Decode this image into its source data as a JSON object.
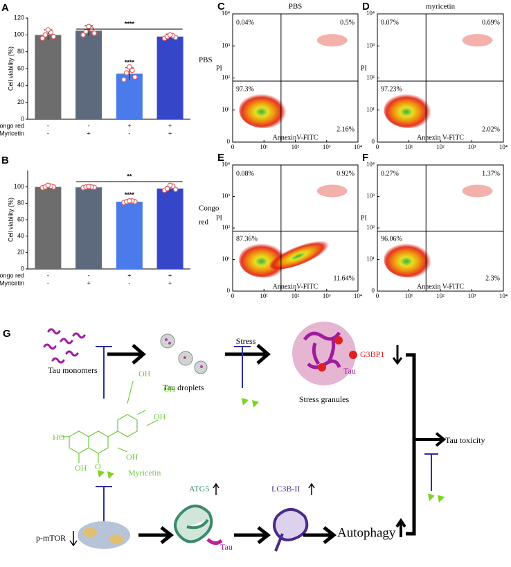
{
  "chart_data": [
    {
      "type": "bar",
      "panel": "A",
      "ylabel": "Cell viability (%)",
      "side_label": [
        "PBS"
      ],
      "categories": [
        null,
        null,
        null,
        null
      ],
      "values": [
        100,
        105,
        54,
        98
      ],
      "errors": [
        6,
        6,
        7,
        3
      ],
      "points": [
        [
          96,
          98,
          100,
          103,
          106
        ],
        [
          100,
          102,
          104,
          107,
          110
        ],
        [
          47,
          50,
          55,
          58,
          62
        ],
        [
          96,
          97,
          98,
          99,
          100
        ]
      ],
      "colors": [
        "#6d6d6d",
        "#5d6a7e",
        "#4b7bea",
        "#3646c8"
      ],
      "ylim": [
        0,
        120
      ],
      "yticks": [
        0,
        20,
        40,
        60,
        80,
        100,
        120
      ],
      "treatments": [
        {
          "name": "Congo red",
          "signs": [
            "-",
            "-",
            "+",
            "+"
          ]
        },
        {
          "name": "Myricetin",
          "signs": [
            "-",
            "+",
            "-",
            "+"
          ]
        }
      ],
      "bar_annotations": [
        null,
        null,
        "****",
        null
      ],
      "bracket_label": "****"
    },
    {
      "type": "bar",
      "panel": "B",
      "ylabel": "Cell viability (%)",
      "side_label": [
        "Congo",
        "red"
      ],
      "categories": [
        null,
        null,
        null,
        null
      ],
      "values": [
        100,
        99.5,
        82,
        98
      ],
      "errors": [
        2,
        1.5,
        2,
        3
      ],
      "points": [
        [
          99,
          100,
          100,
          101,
          102
        ],
        [
          99,
          99.5,
          100,
          100,
          100.5
        ],
        [
          81,
          82,
          82,
          83,
          83
        ],
        [
          96,
          97,
          98,
          101,
          102
        ]
      ],
      "colors": [
        "#6d6d6d",
        "#5d6a7e",
        "#4b7bea",
        "#3646c8"
      ],
      "ylim": [
        0,
        120
      ],
      "yticks": [
        0,
        20,
        40,
        60,
        80,
        100
      ],
      "treatments": [
        {
          "name": "Congo red",
          "signs": [
            "-",
            "-",
            "+",
            "+"
          ]
        },
        {
          "name": "Myricetin",
          "signs": [
            "-",
            "+",
            "-",
            "+"
          ]
        }
      ],
      "bar_annotations": [
        null,
        null,
        "****",
        null
      ],
      "bracket_label": "**"
    },
    {
      "type": "flow",
      "panel": "C",
      "title": "PBS",
      "xlabel": "AnnexinV-FITC",
      "ylabel": "PI",
      "values": [
        0.04,
        0.5,
        97.3,
        2.16
      ],
      "value_labels": [
        "0.04%",
        "0.5%",
        "97.3%",
        "2.16%"
      ],
      "gate_x": 35,
      "gate_y": 80,
      "xlim": [
        0,
        10000
      ],
      "ylim": [
        0,
        10000
      ],
      "xticks": [
        0,
        {
          "value": 10,
          "label": "10¹"
        },
        {
          "value": 100,
          "label": "10²"
        },
        {
          "value": 1000,
          "label": "10³"
        },
        {
          "value": 10000,
          "label": "10⁴"
        }
      ],
      "yticks": [
        0,
        {
          "value": 10,
          "label": "10¹"
        },
        {
          "value": 100,
          "label": "10²"
        },
        {
          "value": 1000,
          "label": "10³"
        },
        {
          "value": 10000,
          "label": "10⁴"
        }
      ]
    },
    {
      "type": "flow",
      "panel": "D",
      "title": "myricetin",
      "xlabel": "Annexin V-FITC",
      "ylabel": "PI",
      "values": [
        0.07,
        0.69,
        97.23,
        2.02
      ],
      "value_labels": [
        "0.07%",
        "0.69%",
        "97.23%",
        "2.02%"
      ],
      "gate_x": 35,
      "gate_y": 80,
      "xlim": [
        0,
        10000
      ],
      "ylim": [
        0,
        10000
      ],
      "xticks": [
        0,
        {
          "value": 10,
          "label": "10¹"
        },
        {
          "value": 100,
          "label": "10²"
        },
        {
          "value": 1000,
          "label": "10³"
        },
        {
          "value": 10000,
          "label": "10⁴"
        }
      ],
      "yticks": [
        0,
        {
          "value": 10,
          "label": "10¹"
        },
        {
          "value": 100,
          "label": "10²"
        },
        {
          "value": 1000,
          "label": "10³"
        },
        {
          "value": 10000,
          "label": "10⁴"
        }
      ]
    },
    {
      "type": "flow",
      "panel": "E",
      "xlabel": "AnnexinV-FITC",
      "ylabel": "PI",
      "values": [
        0.08,
        0.92,
        87.36,
        11.64
      ],
      "value_labels": [
        "0.08%",
        "0.92%",
        "87.36%",
        "11.64%"
      ],
      "gate_x": 35,
      "gate_y": 80,
      "xlim": [
        0,
        10000
      ],
      "ylim": [
        0,
        10000
      ],
      "xticks": [
        0,
        {
          "value": 10,
          "label": "10¹"
        },
        {
          "value": 100,
          "label": "10²"
        },
        {
          "value": 1000,
          "label": "10³"
        },
        {
          "value": 10000,
          "label": "10⁴"
        }
      ],
      "yticks": [
        0,
        {
          "value": 10,
          "label": "10¹"
        },
        {
          "value": 100,
          "label": "10²"
        },
        {
          "value": 1000,
          "label": "10³"
        },
        {
          "value": 10000,
          "label": "10⁴"
        }
      ]
    },
    {
      "type": "flow",
      "panel": "F",
      "xlabel": "Annexin V-FITC",
      "ylabel": "PI",
      "values": [
        0.27,
        1.37,
        96.06,
        2.3
      ],
      "value_labels": [
        "0.27%",
        "1.37%",
        "96.06%",
        "2.3%"
      ],
      "gate_x": 35,
      "gate_y": 80,
      "xlim": [
        0,
        10000
      ],
      "ylim": [
        0,
        10000
      ],
      "xticks": [
        0,
        {
          "value": 10,
          "label": "10¹"
        },
        {
          "value": 100,
          "label": "10²"
        },
        {
          "value": 1000,
          "label": "10³"
        },
        {
          "value": 10000,
          "label": "10⁴"
        }
      ],
      "yticks": [
        0,
        {
          "value": 10,
          "label": "10¹"
        },
        {
          "value": 100,
          "label": "10²"
        },
        {
          "value": 1000,
          "label": "10³"
        },
        {
          "value": 10000,
          "label": "10⁴"
        }
      ]
    }
  ],
  "diagram": {
    "panel": "G",
    "tau_monomers": "Tau monomers",
    "tau_droplets": "Tau droplets",
    "stress": "Stress",
    "stress_granules": "Stress granules",
    "g3bp1": "G3BP1",
    "tau_granule": "Tau",
    "myricetin": "Myricetin",
    "tau_toxicity": "Tau toxicity",
    "p_mtor": "p-mTOR",
    "atg5": "ATG5",
    "tau_atg5": "Tau",
    "lc3b": "LC3B-II",
    "autophagy": "Autophagy",
    "structure_labels": [
      "OH",
      "OH",
      "OH",
      "HO",
      "OH",
      "OH",
      "O"
    ]
  }
}
